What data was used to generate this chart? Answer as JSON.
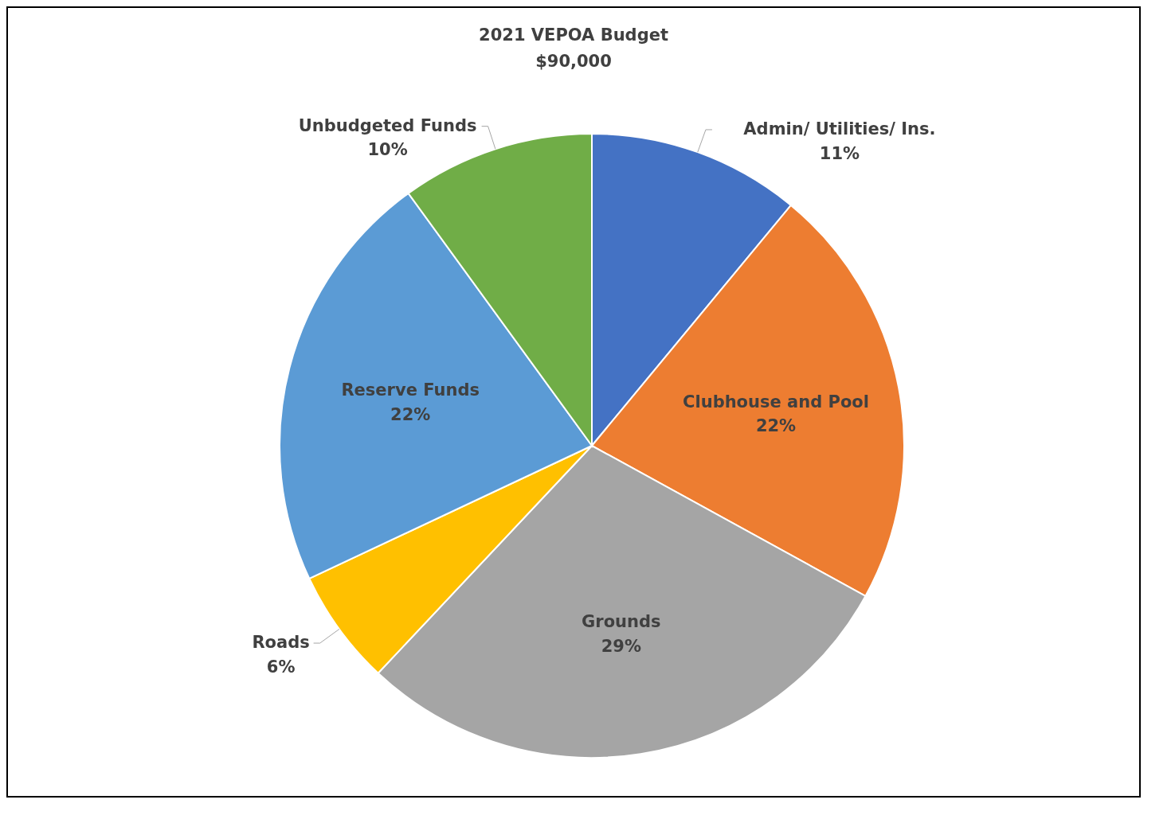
{
  "chart_data": {
    "type": "pie",
    "title": "2021 VEPOA Budget",
    "subtitle": "$90,000",
    "categories": [
      "Admin/ Utilities/ Ins.",
      "Clubhouse and Pool",
      "Grounds",
      "Roads",
      "Reserve Funds",
      "Unbudgeted Funds"
    ],
    "values": [
      11,
      22,
      29,
      6,
      22,
      10
    ],
    "value_labels": [
      "11%",
      "22%",
      "29%",
      "6%",
      "22%",
      "10%"
    ],
    "colors": [
      "#4472c4",
      "#ed7d31",
      "#a5a5a5",
      "#ffc000",
      "#5b9bd5",
      "#70ad47"
    ],
    "data_labels": true
  }
}
